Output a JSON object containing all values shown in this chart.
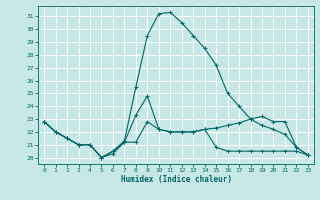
{
  "xlabel": "Humidex (Indice chaleur)",
  "bg_color": "#c8e8e8",
  "grid_color": "#ffffff",
  "line_color": "#006666",
  "spine_color": "#006666",
  "xlim": [
    -0.5,
    23.5
  ],
  "ylim": [
    19.5,
    31.8
  ],
  "xticks": [
    0,
    1,
    2,
    3,
    4,
    5,
    6,
    7,
    8,
    9,
    10,
    11,
    12,
    13,
    14,
    15,
    16,
    17,
    18,
    19,
    20,
    21,
    22,
    23
  ],
  "yticks": [
    20,
    21,
    22,
    23,
    24,
    25,
    26,
    27,
    28,
    29,
    30,
    31
  ],
  "series": [
    [
      22.8,
      22.0,
      21.5,
      21.0,
      21.0,
      20.0,
      20.3,
      21.2,
      21.2,
      22.8,
      22.2,
      22.0,
      22.0,
      22.0,
      22.2,
      22.3,
      22.5,
      22.7,
      23.0,
      23.2,
      22.8,
      22.8,
      20.8,
      20.2
    ],
    [
      22.8,
      22.0,
      21.5,
      21.0,
      21.0,
      20.0,
      20.5,
      21.3,
      25.5,
      29.5,
      31.2,
      31.3,
      30.5,
      29.5,
      28.5,
      27.2,
      25.0,
      24.0,
      23.0,
      22.5,
      22.2,
      21.8,
      20.8,
      20.2
    ],
    [
      22.8,
      22.0,
      21.5,
      21.0,
      21.0,
      20.0,
      20.5,
      21.2,
      23.3,
      24.8,
      22.2,
      22.0,
      22.0,
      22.0,
      22.2,
      20.8,
      20.5,
      20.5,
      20.5,
      20.5,
      20.5,
      20.5,
      20.5,
      20.2
    ]
  ]
}
